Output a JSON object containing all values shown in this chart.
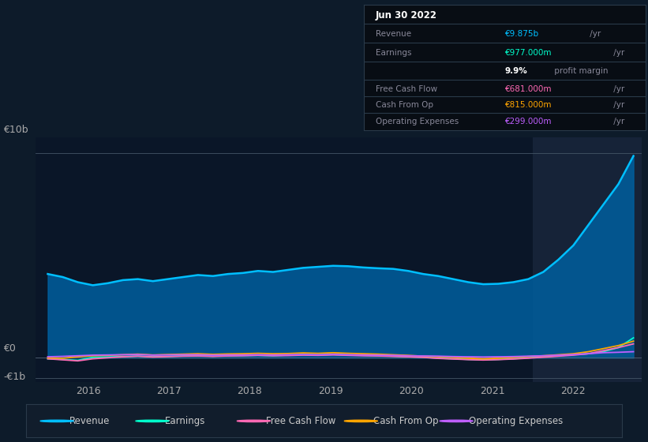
{
  "bg_color": "#0d1b2a",
  "chart_area_color": "#0a1628",
  "highlight_color": "#162338",
  "title_box_bg": "#080d14",
  "title_box_border": "#2a3a4a",
  "title": "Jun 30 2022",
  "info_rows": [
    {
      "label": "Revenue",
      "value": "€9.875b",
      "unit": " /yr",
      "value_color": "#00bfff"
    },
    {
      "label": "Earnings",
      "value": "€977.000m",
      "unit": " /yr",
      "value_color": "#00ffcc"
    },
    {
      "label": "",
      "value": "9.9%",
      "unit": " profit margin",
      "value_color": "#ffffff",
      "bold": true
    },
    {
      "label": "Free Cash Flow",
      "value": "€681.000m",
      "unit": " /yr",
      "value_color": "#ff69b4"
    },
    {
      "label": "Cash From Op",
      "value": "€815.000m",
      "unit": " /yr",
      "value_color": "#ffa500"
    },
    {
      "label": "Operating Expenses",
      "value": "€299.000m",
      "unit": " /yr",
      "value_color": "#bf5fff"
    }
  ],
  "ylim": [
    -1200000000.0,
    10800000000.0
  ],
  "xlim": [
    2015.35,
    2022.85
  ],
  "xticks": [
    2016,
    2017,
    2018,
    2019,
    2020,
    2021,
    2022
  ],
  "y_label_10b": "€10b",
  "y_label_0": "€0",
  "y_label_neg1b": "-€1b",
  "highlight_x_start": 2021.5,
  "highlight_x_end": 2022.85,
  "revenue_color": "#00bfff",
  "revenue_fill_color": "#005f9e",
  "earnings_color": "#00ffcc",
  "fcf_color": "#ff69b4",
  "cfo_color": "#ffa500",
  "opex_color": "#bf5fff",
  "legend": [
    {
      "label": "Revenue",
      "color": "#00bfff"
    },
    {
      "label": "Earnings",
      "color": "#00ffcc"
    },
    {
      "label": "Free Cash Flow",
      "color": "#ff69b4"
    },
    {
      "label": "Cash From Op",
      "color": "#ffa500"
    },
    {
      "label": "Operating Expenses",
      "color": "#bf5fff"
    }
  ],
  "revenue": [
    4.1,
    3.95,
    3.7,
    3.55,
    3.65,
    3.8,
    3.85,
    3.75,
    3.85,
    3.95,
    4.05,
    4.0,
    4.1,
    4.15,
    4.25,
    4.2,
    4.3,
    4.4,
    4.45,
    4.5,
    4.48,
    4.42,
    4.38,
    4.35,
    4.25,
    4.1,
    4.0,
    3.85,
    3.7,
    3.6,
    3.62,
    3.7,
    3.85,
    4.2,
    4.8,
    5.5,
    6.5,
    7.5,
    8.5,
    9.875
  ],
  "earnings": [
    -0.05,
    -0.08,
    -0.12,
    0.02,
    0.04,
    0.06,
    0.08,
    0.05,
    0.07,
    0.09,
    0.1,
    0.08,
    0.1,
    0.11,
    0.12,
    0.1,
    0.13,
    0.15,
    0.14,
    0.16,
    0.14,
    0.12,
    0.1,
    0.08,
    0.05,
    0.03,
    -0.02,
    -0.05,
    -0.08,
    -0.1,
    -0.08,
    -0.05,
    0.0,
    0.05,
    0.1,
    0.15,
    0.2,
    0.3,
    0.5,
    0.977
  ],
  "free_cash_flow": [
    -0.05,
    -0.1,
    -0.15,
    -0.05,
    0.0,
    0.05,
    0.08,
    0.04,
    0.06,
    0.08,
    0.09,
    0.07,
    0.09,
    0.1,
    0.12,
    0.1,
    0.11,
    0.13,
    0.12,
    0.14,
    0.12,
    0.1,
    0.09,
    0.07,
    0.05,
    0.02,
    -0.03,
    -0.06,
    -0.09,
    -0.11,
    -0.09,
    -0.06,
    -0.02,
    0.03,
    0.08,
    0.13,
    0.2,
    0.35,
    0.5,
    0.681
  ],
  "cash_from_op": [
    0.0,
    -0.02,
    0.05,
    0.1,
    0.12,
    0.15,
    0.18,
    0.14,
    0.16,
    0.18,
    0.2,
    0.17,
    0.19,
    0.2,
    0.22,
    0.2,
    0.21,
    0.24,
    0.22,
    0.25,
    0.22,
    0.2,
    0.18,
    0.15,
    0.12,
    0.08,
    0.05,
    0.02,
    -0.02,
    -0.05,
    -0.02,
    0.02,
    0.06,
    0.1,
    0.15,
    0.2,
    0.3,
    0.45,
    0.6,
    0.815
  ],
  "operating_expenses": [
    0.05,
    0.07,
    0.1,
    0.13,
    0.14,
    0.15,
    0.16,
    0.13,
    0.14,
    0.15,
    0.15,
    0.13,
    0.14,
    0.14,
    0.15,
    0.14,
    0.15,
    0.16,
    0.15,
    0.17,
    0.15,
    0.14,
    0.13,
    0.12,
    0.1,
    0.09,
    0.08,
    0.06,
    0.05,
    0.04,
    0.05,
    0.06,
    0.08,
    0.1,
    0.13,
    0.16,
    0.2,
    0.25,
    0.27,
    0.299
  ]
}
